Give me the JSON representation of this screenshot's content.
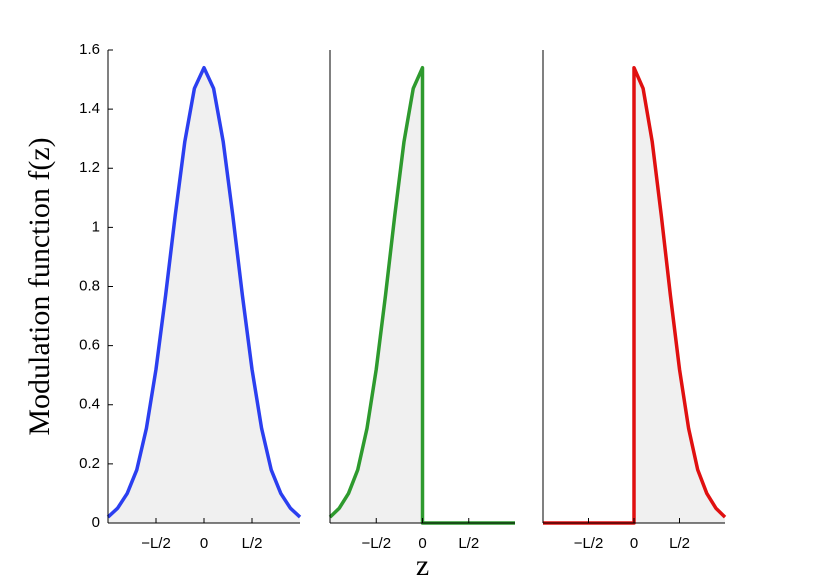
{
  "chart_data": [
    {
      "type": "line",
      "ylabel": "Modulation function f(z)",
      "color": "#2b3ff0",
      "x": [
        -1,
        -0.9,
        -0.8,
        -0.7,
        -0.6,
        -0.5,
        -0.4,
        -0.3,
        -0.2,
        -0.1,
        0,
        0.1,
        0.2,
        0.3,
        0.4,
        0.5,
        0.6,
        0.7,
        0.8,
        0.9,
        1
      ],
      "values": [
        0.02,
        0.05,
        0.1,
        0.18,
        0.32,
        0.52,
        0.77,
        1.04,
        1.29,
        1.47,
        1.54,
        1.47,
        1.29,
        1.04,
        0.77,
        0.52,
        0.32,
        0.18,
        0.1,
        0.05,
        0.02
      ],
      "xlim": [
        -1,
        1
      ],
      "xticks": [
        {
          "value": -0.5,
          "label": "−L/2"
        },
        0,
        {
          "value": 0.5,
          "label": "L/2"
        }
      ],
      "ylim": [
        0,
        1.6
      ],
      "yticks": [
        0,
        0.2,
        0.4,
        0.6,
        0.8,
        1,
        1.2,
        1.4,
        1.6
      ]
    },
    {
      "type": "line",
      "xlabel": "z",
      "color": "#2e9a2e",
      "x": [
        -1,
        -0.9,
        -0.8,
        -0.7,
        -0.6,
        -0.5,
        -0.4,
        -0.3,
        -0.2,
        -0.1,
        0,
        0,
        0.5,
        1
      ],
      "values": [
        0.02,
        0.05,
        0.1,
        0.18,
        0.32,
        0.52,
        0.77,
        1.04,
        1.29,
        1.47,
        1.54,
        0,
        0,
        0
      ],
      "xlim": [
        -1,
        1
      ],
      "xticks": [
        {
          "value": -0.5,
          "label": "−L/2"
        },
        0,
        {
          "value": 0.5,
          "label": "L/2"
        }
      ],
      "ylim": [
        0,
        1.6
      ]
    },
    {
      "type": "line",
      "color": "#e01010",
      "x": [
        -1,
        -0.5,
        0,
        0,
        0.1,
        0.2,
        0.3,
        0.4,
        0.5,
        0.6,
        0.7,
        0.8,
        0.9,
        1
      ],
      "values": [
        0,
        0,
        0,
        1.54,
        1.47,
        1.29,
        1.04,
        0.77,
        0.52,
        0.32,
        0.18,
        0.1,
        0.05,
        0.02
      ],
      "xlim": [
        -1,
        1
      ],
      "xticks": [
        {
          "value": -0.5,
          "label": "−L/2"
        },
        0,
        {
          "value": 0.5,
          "label": "L/2"
        }
      ],
      "ylim": [
        0,
        1.6
      ]
    }
  ]
}
